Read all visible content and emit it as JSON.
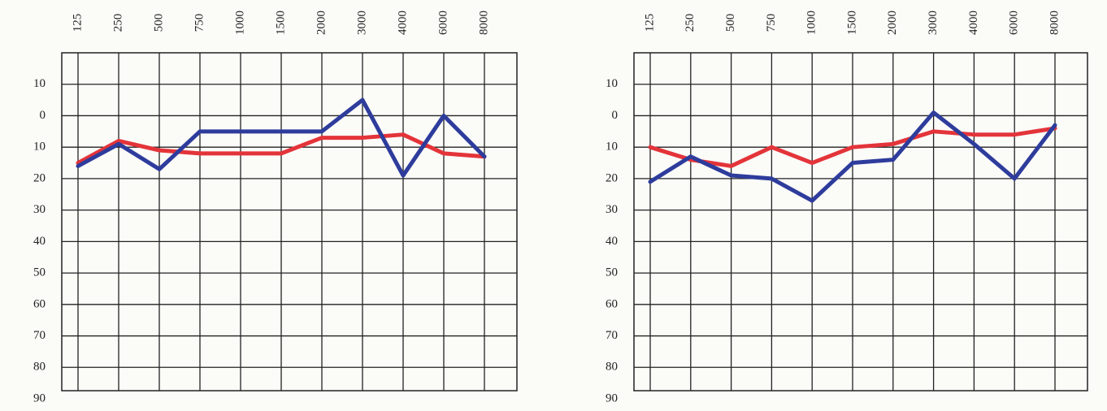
{
  "chart_data": [
    {
      "type": "line",
      "categories": [
        "125",
        "250",
        "500",
        "750",
        "1000",
        "1500",
        "2000",
        "3000",
        "4000",
        "6000",
        "8000"
      ],
      "series": [
        {
          "color": "#e3343a",
          "values": [
            15,
            8,
            11,
            12,
            12,
            12,
            7,
            7,
            6,
            12,
            13
          ]
        },
        {
          "color": "#2e3c9c",
          "values": [
            16,
            9,
            17,
            5,
            5,
            5,
            5,
            -5,
            19,
            0,
            13
          ]
        }
      ],
      "ylim": [
        -20,
        90
      ],
      "inverted": true,
      "yticks": [
        {
          "value": -10,
          "label": "10"
        },
        0,
        10,
        20,
        30,
        40,
        50,
        60,
        70,
        80,
        90
      ],
      "grid": true
    },
    {
      "type": "line",
      "categories": [
        "125",
        "250",
        "500",
        "750",
        "1000",
        "1500",
        "2000",
        "3000",
        "4000",
        "6000",
        "8000"
      ],
      "series": [
        {
          "color": "#e3343a",
          "values": [
            10,
            14,
            16,
            10,
            15,
            10,
            9,
            5,
            6,
            6,
            4
          ]
        },
        {
          "color": "#2e3c9c",
          "values": [
            21,
            13,
            19,
            20,
            27,
            15,
            14,
            -1,
            9,
            20,
            3
          ]
        }
      ],
      "ylim": [
        -20,
        90
      ],
      "inverted": true,
      "yticks": [
        {
          "value": -10,
          "label": "10"
        },
        0,
        10,
        20,
        30,
        40,
        50,
        60,
        70,
        80,
        90
      ],
      "grid": true
    }
  ]
}
